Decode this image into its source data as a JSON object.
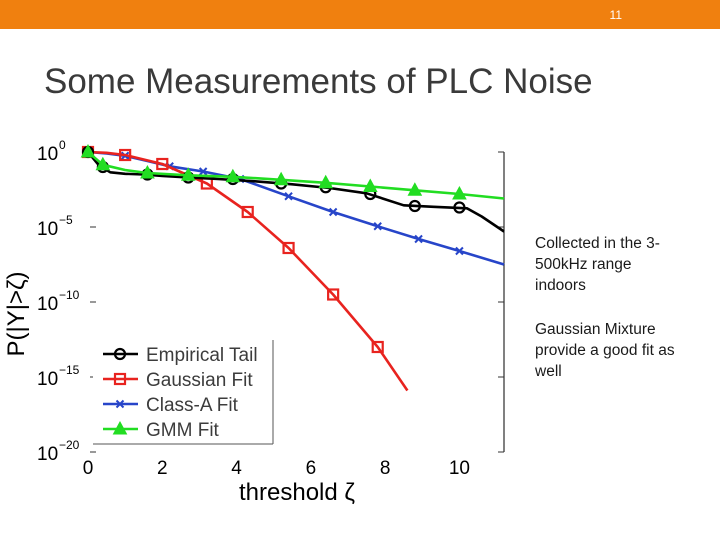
{
  "slide": {
    "page_number": "11",
    "title": "Some Measurements of PLC Noise",
    "bullets": [
      "Collected in the 3-500kHz range indoors",
      "Gaussian Mixture provide a good fit as well"
    ]
  },
  "colors": {
    "topbar": "#f0800f",
    "empirical": "#000000",
    "gaussian": "#e8231f",
    "classa": "#2745c9",
    "gmm": "#22dd22"
  },
  "chart_data": {
    "type": "line",
    "title": "",
    "xlabel": "threshold ζ",
    "ylabel": "P(|Y|>ζ)",
    "xlim": [
      0,
      11.2
    ],
    "ylog_exp_lim": [
      -20,
      0
    ],
    "x_ticks": [
      0,
      2,
      4,
      6,
      8,
      10
    ],
    "x_tick_labels": [
      "0",
      "2",
      "4",
      "6",
      "8",
      "10"
    ],
    "y_ticks_exp": [
      0,
      -5,
      -10,
      -15,
      -20
    ],
    "y_tick_bases": [
      "10",
      "10",
      "10",
      "10",
      "10"
    ],
    "y_tick_exps": [
      "0",
      "−5",
      "−10",
      "−15",
      "−20"
    ],
    "legend_position": "bottom-left",
    "series": [
      {
        "name": "Empirical Tail",
        "marker": "circle",
        "color": "#000000",
        "x": [
          0,
          0.3,
          0.6,
          1,
          1.5,
          2,
          2.7,
          3.5,
          4.5,
          5.5,
          6.5,
          7.5,
          8.5,
          9.3,
          10.2,
          10.6,
          11.2
        ],
        "log10y": [
          0,
          -0.9,
          -1.35,
          -1.45,
          -1.5,
          -1.6,
          -1.7,
          -1.8,
          -1.95,
          -2.15,
          -2.4,
          -2.75,
          -3.55,
          -3.65,
          -3.75,
          -4.3,
          -5.3
        ],
        "marker_x": [
          0,
          0.4,
          1.6,
          2.7,
          3.9,
          5.2,
          6.4,
          7.6,
          8.8,
          10
        ],
        "marker_log10y": [
          0,
          -1.0,
          -1.5,
          -1.7,
          -1.8,
          -2.1,
          -2.35,
          -2.8,
          -3.6,
          -3.7
        ]
      },
      {
        "name": "Gaussian Fit",
        "marker": "square",
        "color": "#e8231f",
        "x": [
          0,
          0.5,
          1,
          2,
          3.2,
          4.3,
          5.4,
          6.6,
          7.8,
          8.6
        ],
        "log10y": [
          0,
          -0.05,
          -0.2,
          -0.8,
          -2.1,
          -4.0,
          -6.4,
          -9.5,
          -13.0,
          -15.9
        ],
        "marker_x": [
          0,
          1,
          2,
          3.2,
          4.3,
          5.4,
          6.6,
          7.8
        ],
        "marker_log10y": [
          0,
          -0.2,
          -0.8,
          -2.1,
          -4.0,
          -6.4,
          -9.5,
          -13.0
        ]
      },
      {
        "name": "Class-A Fit",
        "marker": "x",
        "color": "#2745c9",
        "x": [
          0,
          0.5,
          1,
          1.6,
          2.2,
          3.1,
          4.1,
          5.4,
          6.6,
          7.8,
          8.9,
          10,
          11.2
        ],
        "log10y": [
          0,
          -0.1,
          -0.25,
          -0.6,
          -0.95,
          -1.3,
          -1.8,
          -2.95,
          -4.0,
          -4.95,
          -5.8,
          -6.6,
          -7.5
        ],
        "marker_x": [
          1,
          2.2,
          3.1,
          4.1,
          5.4,
          6.6,
          7.8,
          8.9,
          10
        ],
        "marker_log10y": [
          -0.25,
          -0.95,
          -1.3,
          -1.8,
          -2.95,
          -4.0,
          -4.95,
          -5.8,
          -6.6
        ]
      },
      {
        "name": "GMM Fit",
        "marker": "triangle",
        "color": "#22dd22",
        "x": [
          0,
          0.4,
          1,
          1.6,
          2.7,
          3.9,
          5.2,
          6.4,
          7.6,
          8.8,
          10,
          11.2
        ],
        "log10y": [
          0,
          -0.85,
          -1.2,
          -1.4,
          -1.55,
          -1.65,
          -1.85,
          -2.05,
          -2.3,
          -2.55,
          -2.8,
          -3.1
        ],
        "marker_x": [
          0,
          0.4,
          1.6,
          2.7,
          3.9,
          5.2,
          6.4,
          7.6,
          8.8,
          10
        ],
        "marker_log10y": [
          0,
          -0.85,
          -1.4,
          -1.55,
          -1.65,
          -1.85,
          -2.05,
          -2.3,
          -2.55,
          -2.8
        ]
      }
    ]
  }
}
